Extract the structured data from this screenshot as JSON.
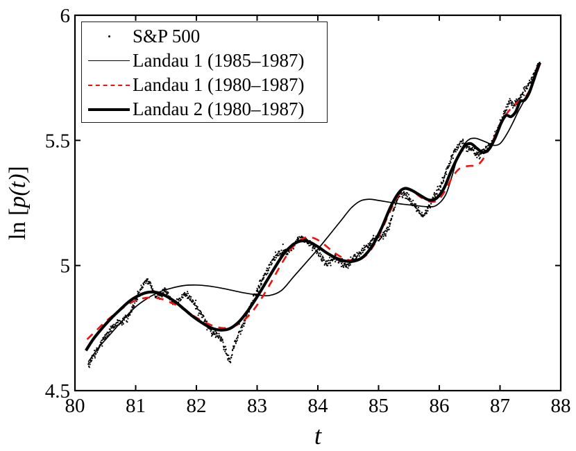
{
  "figure": {
    "background": "#ffffff",
    "axis_color": "#000000",
    "data_dot_color": "#000000",
    "fit_line_color": "#000000",
    "dashed_fit_color": "#ee1111"
  },
  "legend": {
    "items": [
      {
        "label": "S&P 500",
        "glyph": "dot-marker"
      },
      {
        "label": "Landau 1 (1985–1987)",
        "glyph": "thin-solid-line"
      },
      {
        "label": "Landau 1 (1980–1987)",
        "glyph": "red-dashed-line"
      },
      {
        "label": "Landau 2 (1980–1987)",
        "glyph": "thick-solid-line"
      }
    ]
  },
  "chart_data": {
    "type": "line",
    "title": "",
    "xlabel": "t",
    "ylabel_prefix": "ln [",
    "ylabel_italic": "p(t)",
    "ylabel_suffix": "]",
    "xlim": [
      80,
      88
    ],
    "ylim": [
      4.5,
      6
    ],
    "x_ticks": [
      80,
      81,
      82,
      83,
      84,
      85,
      86,
      87,
      88
    ],
    "x_tick_labels": [
      "80",
      "81",
      "82",
      "83",
      "84",
      "85",
      "86",
      "87",
      "88"
    ],
    "y_ticks": [
      4.5,
      5,
      5.5,
      6
    ],
    "y_tick_labels": [
      "4.5",
      "5",
      "5.5",
      "6"
    ],
    "grid": false,
    "legend_position": "top-left",
    "series": [
      {
        "name": "S&P 500",
        "type": "scatter",
        "color": "#000000",
        "marker_radius": 1.1,
        "points_count": 1250,
        "noise_base": 0.007,
        "noise_extra": 0.018,
        "path": [
          [
            80.22,
            4.6
          ],
          [
            80.3,
            4.635
          ],
          [
            80.4,
            4.675
          ],
          [
            80.5,
            4.715
          ],
          [
            80.6,
            4.75
          ],
          [
            80.7,
            4.77
          ],
          [
            80.8,
            4.78
          ],
          [
            80.88,
            4.795
          ],
          [
            80.95,
            4.83
          ],
          [
            81.02,
            4.87
          ],
          [
            81.1,
            4.915
          ],
          [
            81.18,
            4.94
          ],
          [
            81.25,
            4.92
          ],
          [
            81.32,
            4.88
          ],
          [
            81.4,
            4.875
          ],
          [
            81.48,
            4.9
          ],
          [
            81.55,
            4.88
          ],
          [
            81.62,
            4.85
          ],
          [
            81.7,
            4.855
          ],
          [
            81.78,
            4.885
          ],
          [
            81.86,
            4.88
          ],
          [
            81.94,
            4.855
          ],
          [
            82.02,
            4.825
          ],
          [
            82.1,
            4.8
          ],
          [
            82.18,
            4.76
          ],
          [
            82.26,
            4.73
          ],
          [
            82.34,
            4.725
          ],
          [
            82.42,
            4.705
          ],
          [
            82.5,
            4.645
          ],
          [
            82.56,
            4.615
          ],
          [
            82.62,
            4.68
          ],
          [
            82.7,
            4.73
          ],
          [
            82.78,
            4.77
          ],
          [
            82.86,
            4.82
          ],
          [
            82.94,
            4.87
          ],
          [
            83.02,
            4.91
          ],
          [
            83.1,
            4.95
          ],
          [
            83.18,
            4.99
          ],
          [
            83.26,
            5.02
          ],
          [
            83.34,
            5.045
          ],
          [
            83.42,
            5.055
          ],
          [
            83.5,
            5.05
          ],
          [
            83.58,
            5.07
          ],
          [
            83.66,
            5.1
          ],
          [
            83.74,
            5.11
          ],
          [
            83.82,
            5.1
          ],
          [
            83.9,
            5.08
          ],
          [
            83.98,
            5.06
          ],
          [
            84.06,
            5.035
          ],
          [
            84.14,
            5.005
          ],
          [
            84.22,
            5.02
          ],
          [
            84.3,
            5.035
          ],
          [
            84.38,
            5.01
          ],
          [
            84.46,
            4.995
          ],
          [
            84.54,
            5.01
          ],
          [
            84.62,
            5.035
          ],
          [
            84.7,
            5.05
          ],
          [
            84.78,
            5.07
          ],
          [
            84.86,
            5.09
          ],
          [
            84.94,
            5.11
          ],
          [
            85.02,
            5.11
          ],
          [
            85.1,
            5.125
          ],
          [
            85.18,
            5.16
          ],
          [
            85.26,
            5.23
          ],
          [
            85.34,
            5.29
          ],
          [
            85.42,
            5.285
          ],
          [
            85.5,
            5.265
          ],
          [
            85.58,
            5.24
          ],
          [
            85.66,
            5.22
          ],
          [
            85.74,
            5.2
          ],
          [
            85.82,
            5.23
          ],
          [
            85.9,
            5.265
          ],
          [
            85.98,
            5.3
          ],
          [
            86.06,
            5.34
          ],
          [
            86.14,
            5.39
          ],
          [
            86.22,
            5.44
          ],
          [
            86.3,
            5.475
          ],
          [
            86.38,
            5.49
          ],
          [
            86.46,
            5.47
          ],
          [
            86.54,
            5.465
          ],
          [
            86.62,
            5.44
          ],
          [
            86.7,
            5.445
          ],
          [
            86.78,
            5.47
          ],
          [
            86.86,
            5.49
          ],
          [
            86.94,
            5.53
          ],
          [
            87.02,
            5.58
          ],
          [
            87.1,
            5.63
          ],
          [
            87.16,
            5.66
          ],
          [
            87.22,
            5.645
          ],
          [
            87.3,
            5.66
          ],
          [
            87.38,
            5.69
          ],
          [
            87.46,
            5.72
          ],
          [
            87.54,
            5.75
          ],
          [
            87.6,
            5.79
          ],
          [
            87.65,
            5.805
          ]
        ]
      },
      {
        "name": "Landau 1 (1985–1987)",
        "type": "line",
        "style": "solid",
        "width": 1.7,
        "color": "#000000",
        "points": [
          [
            80.22,
            4.615
          ],
          [
            80.4,
            4.675
          ],
          [
            80.6,
            4.73
          ],
          [
            80.8,
            4.785
          ],
          [
            81.0,
            4.835
          ],
          [
            81.2,
            4.87
          ],
          [
            81.4,
            4.895
          ],
          [
            81.6,
            4.91
          ],
          [
            81.8,
            4.92
          ],
          [
            82.0,
            4.922
          ],
          [
            82.2,
            4.918
          ],
          [
            82.4,
            4.91
          ],
          [
            82.6,
            4.9
          ],
          [
            82.8,
            4.89
          ],
          [
            83.0,
            4.883
          ],
          [
            83.2,
            4.88
          ],
          [
            83.4,
            4.9
          ],
          [
            83.6,
            4.955
          ],
          [
            83.8,
            5.01
          ],
          [
            84.0,
            5.065
          ],
          [
            84.2,
            5.125
          ],
          [
            84.4,
            5.185
          ],
          [
            84.55,
            5.23
          ],
          [
            84.7,
            5.258
          ],
          [
            84.85,
            5.265
          ],
          [
            85.0,
            5.26
          ],
          [
            85.2,
            5.252
          ],
          [
            85.4,
            5.245
          ],
          [
            85.6,
            5.24
          ],
          [
            85.8,
            5.235
          ],
          [
            85.95,
            5.24
          ],
          [
            86.1,
            5.28
          ],
          [
            86.2,
            5.35
          ],
          [
            86.3,
            5.43
          ],
          [
            86.4,
            5.48
          ],
          [
            86.5,
            5.505
          ],
          [
            86.6,
            5.508
          ],
          [
            86.7,
            5.5
          ],
          [
            86.8,
            5.49
          ],
          [
            86.9,
            5.48
          ],
          [
            87.0,
            5.487
          ],
          [
            87.1,
            5.52
          ],
          [
            87.2,
            5.565
          ],
          [
            87.3,
            5.615
          ],
          [
            87.4,
            5.66
          ],
          [
            87.5,
            5.71
          ],
          [
            87.58,
            5.755
          ],
          [
            87.65,
            5.8
          ]
        ]
      },
      {
        "name": "Landau 1 (1980–1987)",
        "type": "line",
        "style": "dashed",
        "width": 2.6,
        "dash": [
          11,
          9
        ],
        "color": "#ee1111",
        "points": [
          [
            80.2,
            4.705
          ],
          [
            80.35,
            4.74
          ],
          [
            80.5,
            4.775
          ],
          [
            80.65,
            4.805
          ],
          [
            80.8,
            4.832
          ],
          [
            80.95,
            4.855
          ],
          [
            81.1,
            4.868
          ],
          [
            81.25,
            4.872
          ],
          [
            81.4,
            4.868
          ],
          [
            81.55,
            4.855
          ],
          [
            81.7,
            4.838
          ],
          [
            81.85,
            4.815
          ],
          [
            82.0,
            4.792
          ],
          [
            82.15,
            4.772
          ],
          [
            82.3,
            4.757
          ],
          [
            82.45,
            4.75
          ],
          [
            82.6,
            4.755
          ],
          [
            82.75,
            4.775
          ],
          [
            82.9,
            4.81
          ],
          [
            83.05,
            4.86
          ],
          [
            83.2,
            4.92
          ],
          [
            83.35,
            4.985
          ],
          [
            83.5,
            5.045
          ],
          [
            83.65,
            5.09
          ],
          [
            83.8,
            5.112
          ],
          [
            83.95,
            5.108
          ],
          [
            84.1,
            5.085
          ],
          [
            84.25,
            5.055
          ],
          [
            84.4,
            5.032
          ],
          [
            84.55,
            5.02
          ],
          [
            84.7,
            5.025
          ],
          [
            84.85,
            5.055
          ],
          [
            85.0,
            5.115
          ],
          [
            85.15,
            5.195
          ],
          [
            85.3,
            5.27
          ],
          [
            85.42,
            5.305
          ],
          [
            85.55,
            5.298
          ],
          [
            85.7,
            5.272
          ],
          [
            85.85,
            5.255
          ],
          [
            85.98,
            5.262
          ],
          [
            86.1,
            5.3
          ],
          [
            86.22,
            5.355
          ],
          [
            86.35,
            5.39
          ],
          [
            86.5,
            5.398
          ],
          [
            86.62,
            5.4
          ],
          [
            86.72,
            5.425
          ],
          [
            86.82,
            5.465
          ],
          [
            86.92,
            5.52
          ],
          [
            87.02,
            5.575
          ],
          [
            87.12,
            5.61
          ],
          [
            87.22,
            5.638
          ],
          [
            87.32,
            5.658
          ],
          [
            87.42,
            5.675
          ],
          [
            87.52,
            5.715
          ],
          [
            87.6,
            5.765
          ],
          [
            87.66,
            5.805
          ]
        ]
      },
      {
        "name": "Landau 2 (1980–1987)",
        "type": "line",
        "style": "solid",
        "width": 4.2,
        "color": "#000000",
        "points": [
          [
            80.18,
            4.66
          ],
          [
            80.3,
            4.705
          ],
          [
            80.45,
            4.75
          ],
          [
            80.6,
            4.79
          ],
          [
            80.75,
            4.825
          ],
          [
            80.9,
            4.858
          ],
          [
            81.05,
            4.88
          ],
          [
            81.2,
            4.893
          ],
          [
            81.35,
            4.892
          ],
          [
            81.5,
            4.878
          ],
          [
            81.65,
            4.855
          ],
          [
            81.8,
            4.825
          ],
          [
            81.95,
            4.795
          ],
          [
            82.1,
            4.77
          ],
          [
            82.25,
            4.75
          ],
          [
            82.4,
            4.742
          ],
          [
            82.55,
            4.748
          ],
          [
            82.7,
            4.775
          ],
          [
            82.85,
            4.82
          ],
          [
            83.0,
            4.875
          ],
          [
            83.15,
            4.935
          ],
          [
            83.3,
            4.995
          ],
          [
            83.45,
            5.05
          ],
          [
            83.6,
            5.085
          ],
          [
            83.72,
            5.098
          ],
          [
            83.85,
            5.095
          ],
          [
            84.0,
            5.075
          ],
          [
            84.15,
            5.05
          ],
          [
            84.3,
            5.03
          ],
          [
            84.45,
            5.018
          ],
          [
            84.6,
            5.018
          ],
          [
            84.75,
            5.035
          ],
          [
            84.9,
            5.08
          ],
          [
            85.05,
            5.15
          ],
          [
            85.2,
            5.235
          ],
          [
            85.33,
            5.29
          ],
          [
            85.43,
            5.308
          ],
          [
            85.55,
            5.3
          ],
          [
            85.7,
            5.278
          ],
          [
            85.83,
            5.262
          ],
          [
            85.95,
            5.268
          ],
          [
            86.08,
            5.31
          ],
          [
            86.2,
            5.38
          ],
          [
            86.32,
            5.44
          ],
          [
            86.42,
            5.478
          ],
          [
            86.52,
            5.487
          ],
          [
            86.62,
            5.468
          ],
          [
            86.72,
            5.452
          ],
          [
            86.82,
            5.465
          ],
          [
            86.92,
            5.51
          ],
          [
            87.02,
            5.57
          ],
          [
            87.1,
            5.6
          ],
          [
            87.18,
            5.595
          ],
          [
            87.26,
            5.615
          ],
          [
            87.33,
            5.655
          ],
          [
            87.4,
            5.66
          ],
          [
            87.48,
            5.69
          ],
          [
            87.56,
            5.745
          ],
          [
            87.63,
            5.795
          ],
          [
            87.66,
            5.81
          ]
        ]
      }
    ]
  }
}
